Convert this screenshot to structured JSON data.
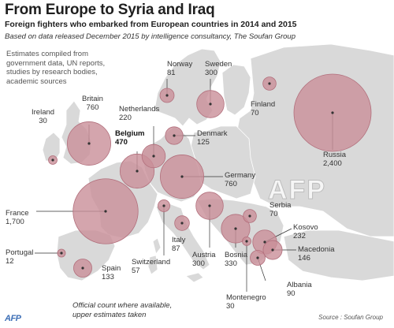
{
  "title": "From Europe to Syria and Iraq",
  "subtitle": "Foreign fighters who embarked from European countries in 2014 and 2015",
  "based_on": "Based on data released December 2015 by intelligence consultancy, The Soufan Group",
  "methodology": "Estimates compiled from government data, UN reports, studies by research bodies, academic sources",
  "footnote": [
    "Official count where available,",
    "upper estimates taken"
  ],
  "source": "Source : Soufan Group",
  "afp_logo": "AFP",
  "watermark": "AFP",
  "colors": {
    "bubble_fill": "#c98f99",
    "bubble_stroke": "#b26f7c",
    "land": "#d9d9d9",
    "sea": "#ffffff"
  },
  "countries": [
    {
      "name": "Ireland",
      "value": "30",
      "fighters": 30
    },
    {
      "name": "Britain",
      "value": "760",
      "fighters": 760
    },
    {
      "name": "Netherlands",
      "value": "220",
      "fighters": 220
    },
    {
      "name": "Belgium",
      "value": "470",
      "fighters": 470
    },
    {
      "name": "Norway",
      "value": "81",
      "fighters": 81
    },
    {
      "name": "Sweden",
      "value": "300",
      "fighters": 300
    },
    {
      "name": "Finland",
      "value": "70",
      "fighters": 70
    },
    {
      "name": "Denmark",
      "value": "125",
      "fighters": 125
    },
    {
      "name": "Russia",
      "value": "2,400",
      "fighters": 2400
    },
    {
      "name": "Germany",
      "value": "760",
      "fighters": 760
    },
    {
      "name": "France",
      "value": "1,700",
      "fighters": 1700
    },
    {
      "name": "Serbia",
      "value": "70",
      "fighters": 70
    },
    {
      "name": "Kosovo",
      "value": "232",
      "fighters": 232
    },
    {
      "name": "Macedonia",
      "value": "146",
      "fighters": 146
    },
    {
      "name": "Portugal",
      "value": "12",
      "fighters": 12
    },
    {
      "name": "Italy",
      "value": "87",
      "fighters": 87
    },
    {
      "name": "Austria",
      "value": "300",
      "fighters": 300
    },
    {
      "name": "Bosnia",
      "value": "330",
      "fighters": 330
    },
    {
      "name": "Spain",
      "value": "133",
      "fighters": 133
    },
    {
      "name": "Switzerland",
      "value": "57",
      "fighters": 57
    },
    {
      "name": "Albania",
      "value": "90",
      "fighters": 90
    },
    {
      "name": "Montenegro",
      "value": "30",
      "fighters": 30
    }
  ]
}
